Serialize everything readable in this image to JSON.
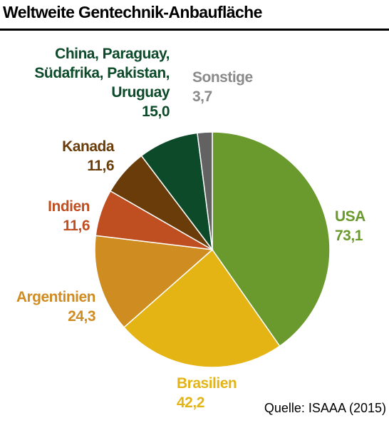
{
  "chart_data": {
    "type": "pie",
    "title": "Weltweite Gentechnik-Anbaufläche",
    "source": "Quelle: ISAAA (2015)",
    "categories": [
      "USA",
      "Brasilien",
      "Argentinien",
      "Indien",
      "Kanada",
      "China, Paraguay, Südafrika, Pakistan, Uruguay",
      "Sonstige"
    ],
    "values": [
      73.1,
      42.2,
      24.3,
      11.6,
      11.6,
      15.0,
      3.7
    ],
    "value_labels": [
      "73,1",
      "42,2",
      "24,3",
      "11,6",
      "11,6",
      "15,0",
      "3,7"
    ],
    "colors": [
      "#6a9a2e",
      "#e4b414",
      "#cf8c20",
      "#bf4e20",
      "#6a3c0a",
      "#0c4a2a",
      "#626262"
    ]
  }
}
